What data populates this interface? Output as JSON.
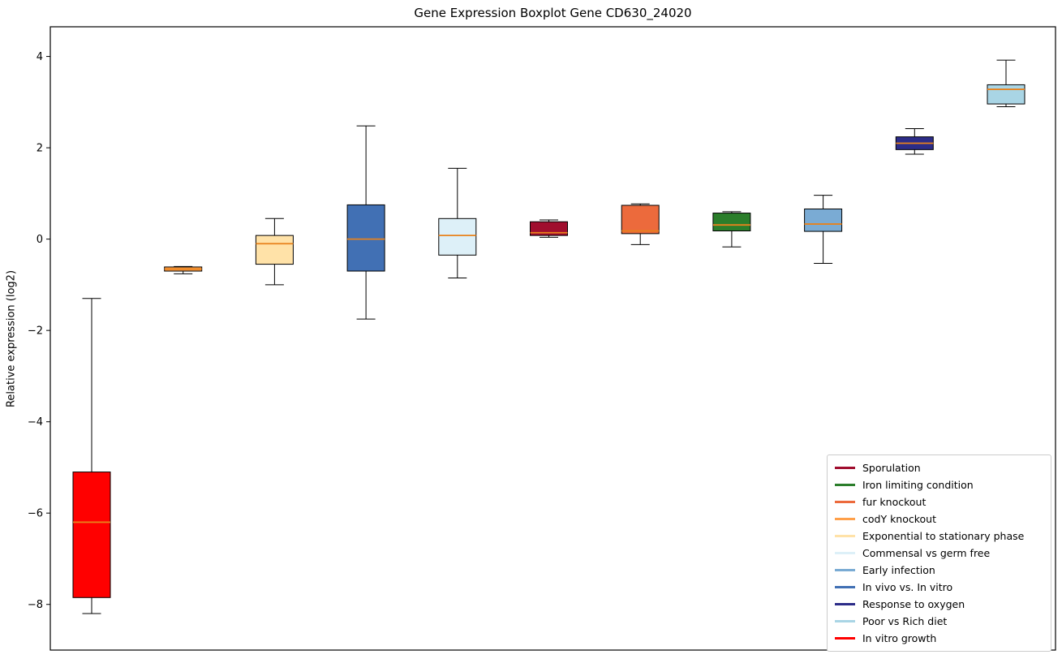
{
  "title": "Gene Expression Boxplot Gene CD630_24020",
  "ylabel": "Relative expression (log2)",
  "chart_data": {
    "type": "boxplot",
    "title": "Gene Expression Boxplot Gene CD630_24020",
    "xlabel": "",
    "ylabel": "Relative expression (log2)",
    "ylim": [
      -9.0,
      4.65
    ],
    "yticks": [
      -8,
      -6,
      -4,
      -2,
      0,
      2,
      4
    ],
    "grid": false,
    "legend_position": "lower right",
    "median_color": "#e8821c",
    "groups": [
      {
        "label": "In vitro growth",
        "color": "#ff0000",
        "whislo": -8.2,
        "q1": -7.85,
        "med": -6.2,
        "q3": -5.1,
        "whishi": -1.3
      },
      {
        "label": "codY knockout",
        "color": "#ffa04a",
        "whislo": -0.76,
        "q1": -0.7,
        "med": -0.655,
        "q3": -0.61,
        "whishi": -0.6
      },
      {
        "label": "Exponential to stationary phase",
        "color": "#ffe2a8",
        "whislo": -1.0,
        "q1": -0.55,
        "med": -0.1,
        "q3": 0.08,
        "whishi": 0.45
      },
      {
        "label": "In vivo vs. In vitro",
        "color": "#4170b4",
        "whislo": -1.75,
        "q1": -0.7,
        "med": 0.0,
        "q3": 0.75,
        "whishi": 2.48
      },
      {
        "label": "Commensal vs germ free",
        "color": "#ddf0f8",
        "whislo": -0.85,
        "q1": -0.35,
        "med": 0.08,
        "q3": 0.45,
        "whishi": 1.55
      },
      {
        "label": "Sporulation",
        "color": "#a00e2e",
        "whislo": 0.04,
        "q1": 0.08,
        "med": 0.14,
        "q3": 0.38,
        "whishi": 0.42
      },
      {
        "label": "fur knockout",
        "color": "#ec6a3c",
        "whislo": -0.12,
        "q1": 0.12,
        "med": 0.18,
        "q3": 0.74,
        "whishi": 0.77
      },
      {
        "label": "Iron limiting condition",
        "color": "#2b7e2b",
        "whislo": -0.17,
        "q1": 0.18,
        "med": 0.31,
        "q3": 0.57,
        "whishi": 0.6
      },
      {
        "label": "Early infection",
        "color": "#7aabd4",
        "whislo": -0.53,
        "q1": 0.17,
        "med": 0.33,
        "q3": 0.66,
        "whishi": 0.96
      },
      {
        "label": "Response to oxygen",
        "color": "#2c2c88",
        "whislo": 1.86,
        "q1": 1.96,
        "med": 2.1,
        "q3": 2.24,
        "whishi": 2.42
      },
      {
        "label": "Poor vs Rich diet",
        "color": "#a9d5e5",
        "whislo": 2.9,
        "q1": 2.96,
        "med": 3.28,
        "q3": 3.38,
        "whishi": 3.92
      }
    ],
    "legend": [
      {
        "label": "Sporulation",
        "color": "#a00e2e"
      },
      {
        "label": "Iron limiting condition",
        "color": "#2b7e2b"
      },
      {
        "label": "fur knockout",
        "color": "#ec6a3c"
      },
      {
        "label": "codY knockout",
        "color": "#ffa04a"
      },
      {
        "label": "Exponential to stationary phase",
        "color": "#ffe2a8"
      },
      {
        "label": "Commensal vs germ free",
        "color": "#ddf0f8"
      },
      {
        "label": "Early infection",
        "color": "#7aabd4"
      },
      {
        "label": "In vivo vs. In vitro",
        "color": "#4170b4"
      },
      {
        "label": "Response to oxygen",
        "color": "#2c2c88"
      },
      {
        "label": "Poor vs Rich diet",
        "color": "#a9d5e5"
      },
      {
        "label": "In vitro growth",
        "color": "#ff0000"
      }
    ]
  }
}
